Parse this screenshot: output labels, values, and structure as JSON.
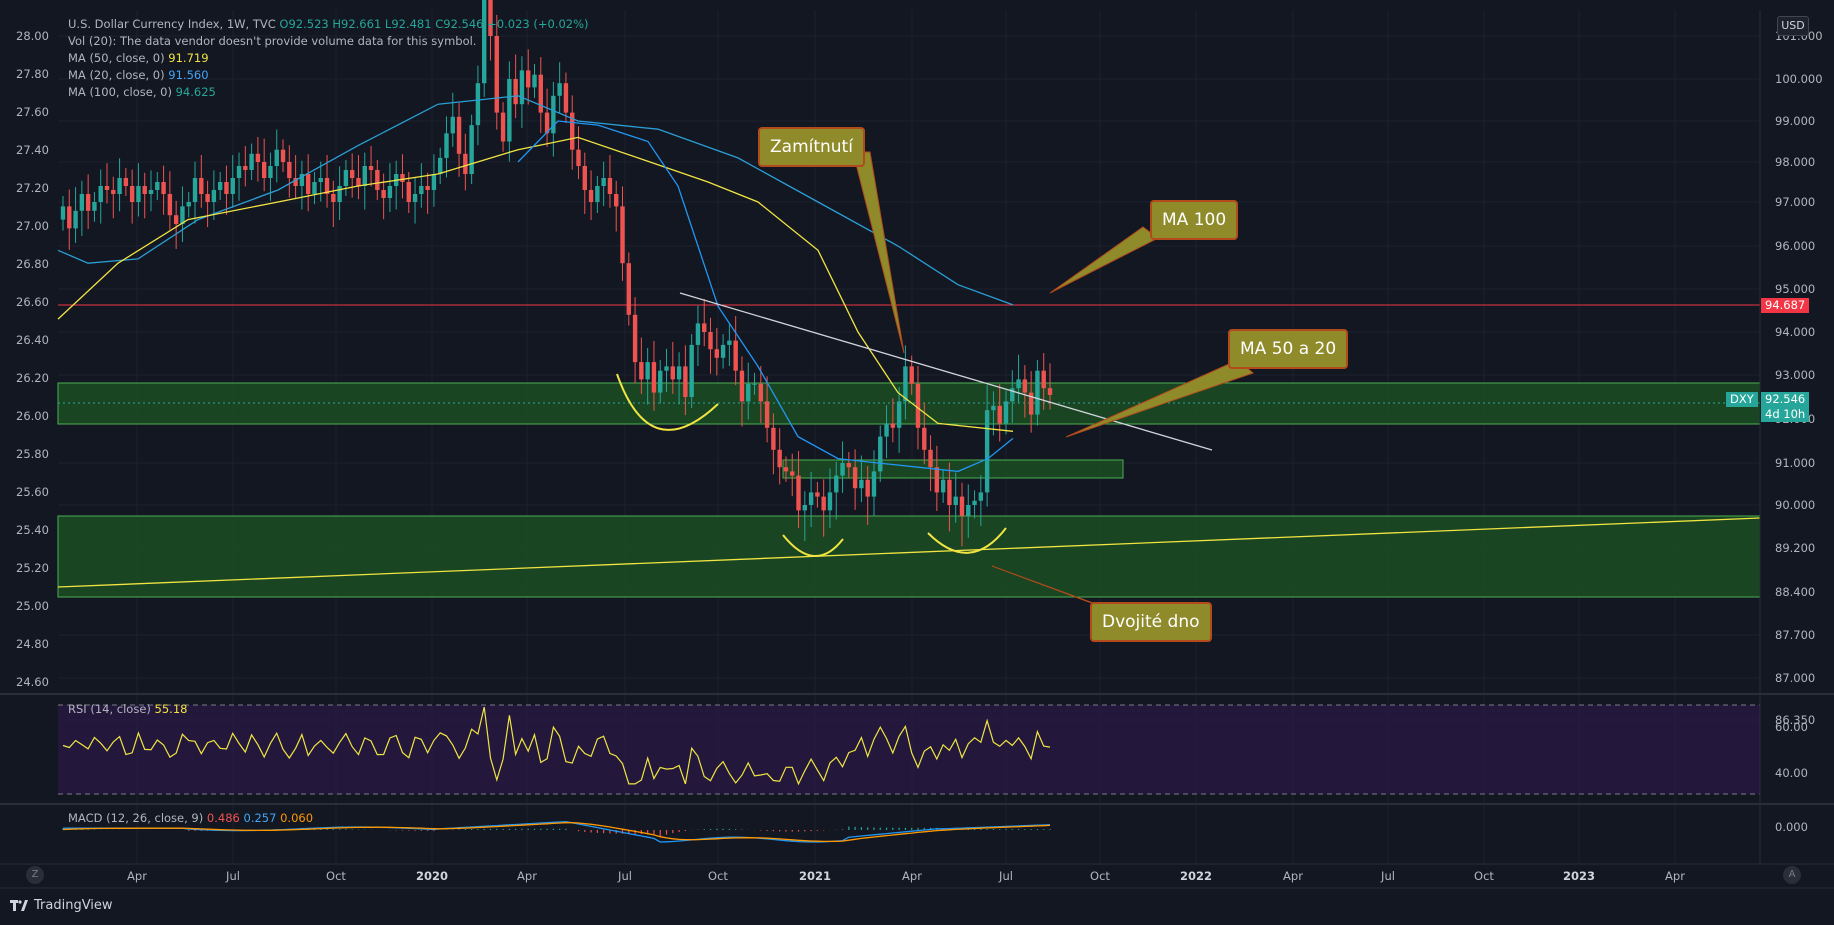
{
  "symbol_info": {
    "title": "U.S. Dollar Currency Index, 1W, TVC",
    "open": "O92.523",
    "high": "H92.661",
    "low": "L92.481",
    "close": "C92.546",
    "change": "+0.023 (+0.02%)",
    "volume_note": "Vol (20): The data vendor doesn't provide volume data for this symbol.",
    "ma50_label": "MA (50, close, 0)",
    "ma50_value": "91.719",
    "ma20_label": "MA (20, close, 0)",
    "ma20_value": "91.560",
    "ma100_label": "MA (100, close, 0)",
    "ma100_value": "94.625"
  },
  "currency_button": "USD",
  "callouts": {
    "rejection": "Zamítnutí",
    "ma100": "MA 100",
    "ma50_20": "MA 50 a 20",
    "double_bottom": "Dvojité dno"
  },
  "price_tags": {
    "level": "94.687",
    "ticker": "DXY",
    "last": "92.546",
    "countdown": "4d 10h"
  },
  "rsi_label": "RSI (14, close)",
  "rsi_value": "55.18",
  "macd_label": "MACD (12, 26, close, 9)",
  "macd_values": [
    "0.486",
    "0.257",
    "0.060"
  ],
  "branding": "TradingView",
  "corner_buttons": {
    "left": "Z",
    "right": "A"
  },
  "colors": {
    "up": "#26a69a",
    "down": "#ef5350",
    "ma50": "#f0e442",
    "ma20": "#2196f3",
    "ma100": "#2a9fd6",
    "zone": "#1e5e28",
    "zone_border": "#4caf50",
    "rsi_bg": "#2a1a45",
    "callout_bg": "#8f8a2a",
    "callout_border": "#b24a1c"
  },
  "chart_data": {
    "type": "candlestick",
    "title": "U.S. Dollar Currency Index, 1W, TVC",
    "x_ticks": [
      "Apr",
      "Jul",
      "Oct",
      "2020",
      "Apr",
      "Jul",
      "Oct",
      "2021",
      "Apr",
      "Jul",
      "Oct",
      "2022",
      "Apr",
      "Jul",
      "Oct",
      "2023",
      "Apr"
    ],
    "left_axis_ticks": [
      "28.00",
      "27.80",
      "27.60",
      "27.40",
      "27.20",
      "27.00",
      "26.80",
      "26.60",
      "26.40",
      "26.20",
      "26.00",
      "25.80",
      "25.60",
      "25.40",
      "25.20",
      "25.00",
      "24.80",
      "24.60"
    ],
    "right_axis_ticks": [
      "101.000",
      "100.000",
      "99.000",
      "98.000",
      "97.000",
      "96.000",
      "95.000",
      "94.000",
      "93.000",
      "92.000",
      "91.000",
      "90.000",
      "89.200",
      "88.400",
      "87.700",
      "87.000",
      "86.350"
    ],
    "rsi_axis_ticks": [
      "60.00",
      "40.00"
    ],
    "macd_axis_ticks": [
      "0.000"
    ],
    "week_closes": [
      96.9,
      96.4,
      96.8,
      97.2,
      96.8,
      97.0,
      97.4,
      97.3,
      97.2,
      97.6,
      97.4,
      97.0,
      97.4,
      97.2,
      97.3,
      97.5,
      97.2,
      96.7,
      96.5,
      96.9,
      97.0,
      97.6,
      97.2,
      97.0,
      97.3,
      97.5,
      97.2,
      97.6,
      97.9,
      97.8,
      98.2,
      98.0,
      97.6,
      97.9,
      98.3,
      98.0,
      97.6,
      97.4,
      97.7,
      97.2,
      97.5,
      97.6,
      97.2,
      97.0,
      97.4,
      97.8,
      97.6,
      97.4,
      97.9,
      97.8,
      97.3,
      97.1,
      97.4,
      97.7,
      97.5,
      97.0,
      97.2,
      97.4,
      97.3,
      97.7,
      98.1,
      98.7,
      99.1,
      98.2,
      97.7,
      98.9,
      99.9,
      102.0,
      101.0,
      99.2,
      98.5,
      100.0,
      99.4,
      100.2,
      99.8,
      100.1,
      99.2,
      98.7,
      99.6,
      99.9,
      99.2,
      98.3,
      97.9,
      97.3,
      97.0,
      97.4,
      97.6,
      97.2,
      96.9,
      95.6,
      94.4,
      93.3,
      92.9,
      93.3,
      92.6,
      93.1,
      93.2,
      92.9,
      93.2,
      92.5,
      93.7,
      94.2,
      94.0,
      93.6,
      93.4,
      93.7,
      93.8,
      93.1,
      92.4,
      92.8,
      92.8,
      92.4,
      91.8,
      91.3,
      90.9,
      90.8,
      90.7,
      89.9,
      90.0,
      90.3,
      90.2,
      89.9,
      90.3,
      90.7,
      91.0,
      90.9,
      90.4,
      90.6,
      90.2,
      90.8,
      91.6,
      91.9,
      91.8,
      92.4,
      93.2,
      92.8,
      91.8,
      91.3,
      90.9,
      90.3,
      90.6,
      90.0,
      90.2,
      89.8,
      90.0,
      90.1,
      90.3,
      92.2,
      92.3,
      91.9,
      92.4,
      92.7,
      92.9,
      92.6,
      92.1,
      93.1,
      92.7,
      92.546
    ],
    "ma_series": {
      "MA 100": [
        [
          0,
          95.9
        ],
        [
          30,
          95.6
        ],
        [
          80,
          95.7
        ],
        [
          140,
          96.6
        ],
        [
          220,
          97.3
        ],
        [
          300,
          98.4
        ],
        [
          380,
          99.4
        ],
        [
          460,
          99.6
        ],
        [
          520,
          99.0
        ],
        [
          600,
          98.8
        ],
        [
          680,
          98.1
        ],
        [
          760,
          97.0
        ],
        [
          840,
          96.0
        ],
        [
          900,
          95.1
        ],
        [
          955,
          94.63
        ]
      ],
      "MA 50": [
        [
          0,
          94.3
        ],
        [
          60,
          95.6
        ],
        [
          130,
          96.6
        ],
        [
          220,
          97.0
        ],
        [
          300,
          97.4
        ],
        [
          380,
          97.7
        ],
        [
          460,
          98.3
        ],
        [
          520,
          98.6
        ],
        [
          580,
          98.1
        ],
        [
          650,
          97.5
        ],
        [
          700,
          97.0
        ],
        [
          760,
          95.9
        ],
        [
          800,
          94.0
        ],
        [
          840,
          92.6
        ],
        [
          880,
          91.9
        ],
        [
          955,
          91.72
        ]
      ],
      "MA 20": [
        [
          460,
          98.0
        ],
        [
          500,
          99.0
        ],
        [
          540,
          98.9
        ],
        [
          590,
          98.5
        ],
        [
          620,
          97.4
        ],
        [
          660,
          94.6
        ],
        [
          700,
          93.2
        ],
        [
          740,
          91.6
        ],
        [
          780,
          91.1
        ],
        [
          820,
          91.0
        ],
        [
          860,
          90.9
        ],
        [
          900,
          90.8
        ],
        [
          930,
          91.1
        ],
        [
          955,
          91.56
        ]
      ]
    },
    "annotations": [
      "Zamítnutí",
      "MA 100",
      "MA 50 a 20",
      "Dvojité dno"
    ],
    "horizontal_level": 94.687,
    "zones": [
      [
        92.0,
        93.0
      ],
      [
        90.9,
        91.3
      ],
      [
        88.3,
        90.0
      ]
    ],
    "trendline": [
      [
        680,
        94.9
      ],
      [
        1210,
        91.6
      ]
    ],
    "support_line": [
      [
        58,
        88.85
      ],
      [
        1760,
        90.0
      ]
    ]
  }
}
